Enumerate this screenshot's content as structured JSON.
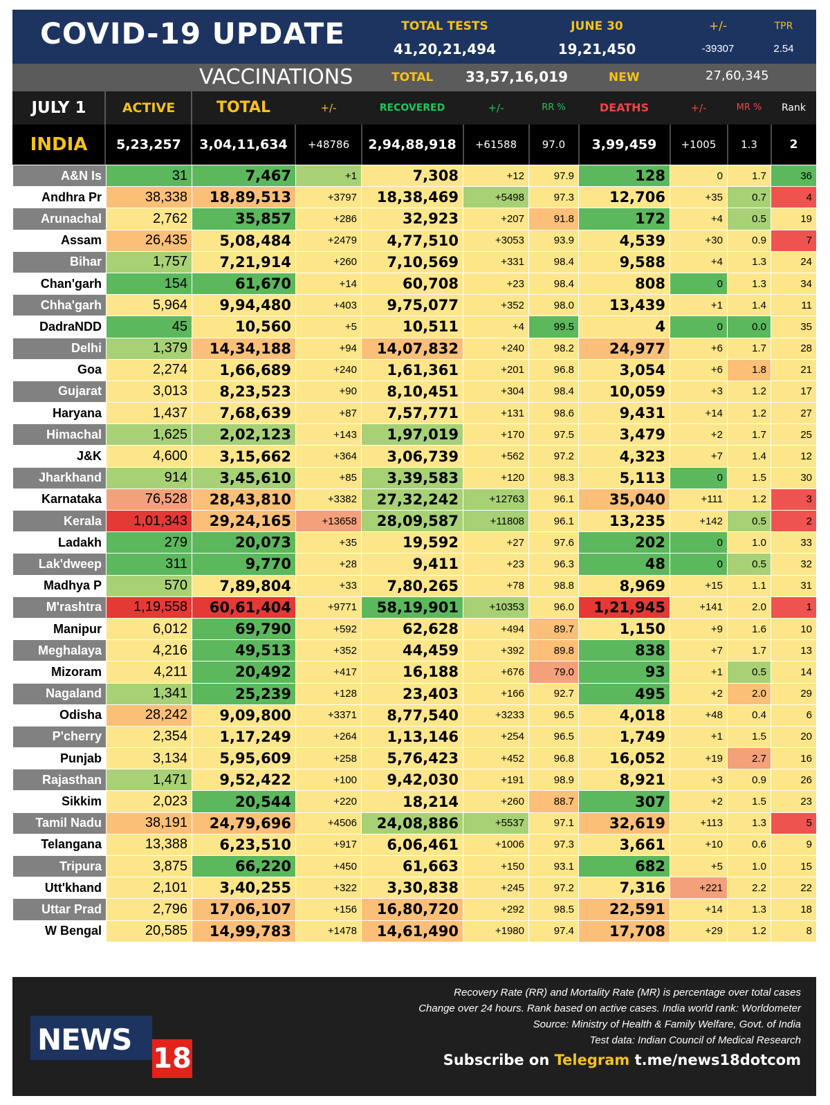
{
  "header": {
    "title": "COVID-19 UPDATE",
    "total_tests_label": "TOTAL TESTS",
    "total_tests_value": "41,20,21,494",
    "date_label": "JUNE 30",
    "date_value": "19,21,450",
    "change_label": "+/-",
    "change_value": "-39307",
    "tpr_label": "TPR",
    "tpr_value": "2.54"
  },
  "vaccinations": {
    "title": "VACCINATIONS",
    "total_label": "TOTAL",
    "total_value": "33,57,16,019",
    "new_label": "NEW",
    "new_value": "27,60,345"
  },
  "columns": {
    "date": "JULY 1",
    "active": "ACTIVE",
    "total": "TOTAL",
    "total_change": "+/-",
    "recovered": "RECOVERED",
    "recovered_change": "+/-",
    "rr": "RR %",
    "deaths": "DEATHS",
    "deaths_change": "+/-",
    "mr": "MR %",
    "rank": "Rank"
  },
  "india": {
    "name": "INDIA",
    "active": "5,23,257",
    "total": "3,04,11,634",
    "total_change": "+48786",
    "recovered": "2,94,88,918",
    "recovered_change": "+61588",
    "rr": "97.0",
    "deaths": "3,99,459",
    "deaths_change": "+1005",
    "mr": "1.3",
    "rank": "2"
  },
  "states": [
    [
      "A&N Is",
      "31",
      "7,467",
      "+1",
      "7,308",
      "+12",
      "97.9",
      "128",
      "0",
      "1.7",
      "36"
    ],
    [
      "Andhra Pr",
      "38,338",
      "18,89,513",
      "+3797",
      "18,38,469",
      "+5498",
      "97.3",
      "12,706",
      "+35",
      "0.7",
      "4"
    ],
    [
      "Arunachal",
      "2,762",
      "35,857",
      "+286",
      "32,923",
      "+207",
      "91.8",
      "172",
      "+4",
      "0.5",
      "19"
    ],
    [
      "Assam",
      "26,435",
      "5,08,484",
      "+2479",
      "4,77,510",
      "+3053",
      "93.9",
      "4,539",
      "+30",
      "0.9",
      "7"
    ],
    [
      "Bihar",
      "1,757",
      "7,21,914",
      "+260",
      "7,10,569",
      "+331",
      "98.4",
      "9,588",
      "+4",
      "1.3",
      "24"
    ],
    [
      "Chan'garh",
      "154",
      "61,670",
      "+14",
      "60,708",
      "+23",
      "98.4",
      "808",
      "0",
      "1.3",
      "34"
    ],
    [
      "Chha'garh",
      "5,964",
      "9,94,480",
      "+403",
      "9,75,077",
      "+352",
      "98.0",
      "13,439",
      "+1",
      "1.4",
      "11"
    ],
    [
      "DadraNDD",
      "45",
      "10,560",
      "+5",
      "10,511",
      "+4",
      "99.5",
      "4",
      "0",
      "0.0",
      "35"
    ],
    [
      "Delhi",
      "1,379",
      "14,34,188",
      "+94",
      "14,07,832",
      "+240",
      "98.2",
      "24,977",
      "+6",
      "1.7",
      "28"
    ],
    [
      "Goa",
      "2,274",
      "1,66,689",
      "+240",
      "1,61,361",
      "+201",
      "96.8",
      "3,054",
      "+6",
      "1.8",
      "21"
    ],
    [
      "Gujarat",
      "3,013",
      "8,23,523",
      "+90",
      "8,10,451",
      "+304",
      "98.4",
      "10,059",
      "+3",
      "1.2",
      "17"
    ],
    [
      "Haryana",
      "1,437",
      "7,68,639",
      "+87",
      "7,57,771",
      "+131",
      "98.6",
      "9,431",
      "+14",
      "1.2",
      "27"
    ],
    [
      "Himachal",
      "1,625",
      "2,02,123",
      "+143",
      "1,97,019",
      "+170",
      "97.5",
      "3,479",
      "+2",
      "1.7",
      "25"
    ],
    [
      "J&K",
      "4,600",
      "3,15,662",
      "+364",
      "3,06,739",
      "+562",
      "97.2",
      "4,323",
      "+7",
      "1.4",
      "12"
    ],
    [
      "Jharkhand",
      "914",
      "3,45,610",
      "+85",
      "3,39,583",
      "+120",
      "98.3",
      "5,113",
      "0",
      "1.5",
      "30"
    ],
    [
      "Karnataka",
      "76,528",
      "28,43,810",
      "+3382",
      "27,32,242",
      "+12763",
      "96.1",
      "35,040",
      "+111",
      "1.2",
      "3"
    ],
    [
      "Kerala",
      "1,01,343",
      "29,24,165",
      "+13658",
      "28,09,587",
      "+11808",
      "96.1",
      "13,235",
      "+142",
      "0.5",
      "2"
    ],
    [
      "Ladakh",
      "279",
      "20,073",
      "+35",
      "19,592",
      "+27",
      "97.6",
      "202",
      "0",
      "1.0",
      "33"
    ],
    [
      "Lak'dweep",
      "311",
      "9,770",
      "+28",
      "9,411",
      "+23",
      "96.3",
      "48",
      "0",
      "0.5",
      "32"
    ],
    [
      "Madhya P",
      "570",
      "7,89,804",
      "+33",
      "7,80,265",
      "+78",
      "98.8",
      "8,969",
      "+15",
      "1.1",
      "31"
    ],
    [
      "M'rashtra",
      "1,19,558",
      "60,61,404",
      "+9771",
      "58,19,901",
      "+10353",
      "96.0",
      "1,21,945",
      "+141",
      "2.0",
      "1"
    ],
    [
      "Manipur",
      "6,012",
      "69,790",
      "+592",
      "62,628",
      "+494",
      "89.7",
      "1,150",
      "+9",
      "1.6",
      "10"
    ],
    [
      "Meghalaya",
      "4,216",
      "49,513",
      "+352",
      "44,459",
      "+392",
      "89.8",
      "838",
      "+7",
      "1.7",
      "13"
    ],
    [
      "Mizoram",
      "4,211",
      "20,492",
      "+417",
      "16,188",
      "+676",
      "79.0",
      "93",
      "+1",
      "0.5",
      "14"
    ],
    [
      "Nagaland",
      "1,341",
      "25,239",
      "+128",
      "23,403",
      "+166",
      "92.7",
      "495",
      "+2",
      "2.0",
      "29"
    ],
    [
      "Odisha",
      "28,242",
      "9,09,800",
      "+3371",
      "8,77,540",
      "+3233",
      "96.5",
      "4,018",
      "+48",
      "0.4",
      "6"
    ],
    [
      "P'cherry",
      "2,354",
      "1,17,249",
      "+264",
      "1,13,146",
      "+254",
      "96.5",
      "1,749",
      "+1",
      "1.5",
      "20"
    ],
    [
      "Punjab",
      "3,134",
      "5,95,609",
      "+258",
      "5,76,423",
      "+452",
      "96.8",
      "16,052",
      "+19",
      "2.7",
      "16"
    ],
    [
      "Rajasthan",
      "1,471",
      "9,52,422",
      "+100",
      "9,42,030",
      "+191",
      "98.9",
      "8,921",
      "+3",
      "0.9",
      "26"
    ],
    [
      "Sikkim",
      "2,023",
      "20,544",
      "+220",
      "18,214",
      "+260",
      "88.7",
      "307",
      "+2",
      "1.5",
      "23"
    ],
    [
      "Tamil Nadu",
      "38,191",
      "24,79,696",
      "+4506",
      "24,08,886",
      "+5537",
      "97.1",
      "32,619",
      "+113",
      "1.3",
      "5"
    ],
    [
      "Telangana",
      "13,388",
      "6,23,510",
      "+917",
      "6,06,461",
      "+1006",
      "97.3",
      "3,661",
      "+10",
      "0.6",
      "9"
    ],
    [
      "Tripura",
      "3,875",
      "66,220",
      "+450",
      "61,663",
      "+150",
      "93.1",
      "682",
      "+5",
      "1.0",
      "15"
    ],
    [
      "Utt'khand",
      "2,101",
      "3,40,255",
      "+322",
      "3,30,838",
      "+245",
      "97.2",
      "7,316",
      "+221",
      "2.2",
      "22"
    ],
    [
      "Uttar Prad",
      "2,796",
      "17,06,107",
      "+156",
      "16,80,720",
      "+292",
      "98.5",
      "22,591",
      "+14",
      "1.3",
      "18"
    ],
    [
      "W Bengal",
      "20,585",
      "14,99,783",
      "+1478",
      "14,61,490",
      "+1980",
      "97.4",
      "17,708",
      "+29",
      "1.2",
      "8"
    ]
  ],
  "colors": {
    "green": "#5cb85c",
    "light_green": "#a8d175",
    "yellow": "#fde68a",
    "orange": "#fbbf77",
    "salmon": "#f4a07a",
    "red": "#ef5350",
    "deep_red": "#e53935"
  },
  "cell_colors": [
    [
      "g",
      "g",
      "l",
      "y",
      "y",
      "y",
      "g",
      "y",
      "y",
      "g"
    ],
    [
      "o",
      "o",
      "y",
      "y",
      "l",
      "y",
      "y",
      "y",
      "l",
      "r"
    ],
    [
      "y",
      "g",
      "y",
      "y",
      "y",
      "o",
      "g",
      "y",
      "l",
      "y"
    ],
    [
      "o",
      "y",
      "y",
      "y",
      "y",
      "y",
      "y",
      "y",
      "y",
      "r"
    ],
    [
      "l",
      "y",
      "y",
      "y",
      "y",
      "y",
      "y",
      "y",
      "y",
      "y"
    ],
    [
      "g",
      "g",
      "y",
      "y",
      "y",
      "y",
      "y",
      "g",
      "y",
      "y"
    ],
    [
      "y",
      "y",
      "y",
      "y",
      "y",
      "y",
      "y",
      "y",
      "y",
      "y"
    ],
    [
      "g",
      "y",
      "y",
      "y",
      "y",
      "g",
      "y",
      "g",
      "g",
      "y"
    ],
    [
      "l",
      "o",
      "y",
      "o",
      "y",
      "y",
      "o",
      "y",
      "y",
      "y"
    ],
    [
      "y",
      "y",
      "y",
      "y",
      "y",
      "y",
      "y",
      "y",
      "o",
      "y"
    ],
    [
      "y",
      "y",
      "y",
      "y",
      "y",
      "y",
      "y",
      "y",
      "y",
      "y"
    ],
    [
      "y",
      "y",
      "y",
      "y",
      "y",
      "y",
      "y",
      "y",
      "y",
      "y"
    ],
    [
      "l",
      "l",
      "y",
      "l",
      "y",
      "y",
      "y",
      "y",
      "y",
      "y"
    ],
    [
      "y",
      "y",
      "y",
      "y",
      "y",
      "y",
      "y",
      "y",
      "y",
      "y"
    ],
    [
      "l",
      "l",
      "y",
      "l",
      "y",
      "y",
      "y",
      "g",
      "y",
      "y"
    ],
    [
      "s",
      "o",
      "y",
      "l",
      "l",
      "y",
      "o",
      "y",
      "y",
      "r"
    ],
    [
      "d",
      "o",
      "s",
      "l",
      "l",
      "y",
      "y",
      "y",
      "l",
      "r"
    ],
    [
      "g",
      "g",
      "y",
      "y",
      "y",
      "y",
      "g",
      "g",
      "y",
      "y"
    ],
    [
      "g",
      "g",
      "y",
      "y",
      "y",
      "y",
      "g",
      "g",
      "l",
      "y"
    ],
    [
      "l",
      "y",
      "y",
      "y",
      "y",
      "y",
      "y",
      "y",
      "y",
      "y"
    ],
    [
      "d",
      "d",
      "y",
      "g",
      "l",
      "y",
      "d",
      "y",
      "y",
      "r"
    ],
    [
      "y",
      "g",
      "y",
      "y",
      "y",
      "o",
      "y",
      "y",
      "y",
      "y"
    ],
    [
      "y",
      "g",
      "y",
      "y",
      "y",
      "o",
      "g",
      "y",
      "y",
      "y"
    ],
    [
      "y",
      "g",
      "y",
      "y",
      "y",
      "s",
      "g",
      "y",
      "l",
      "y"
    ],
    [
      "l",
      "g",
      "y",
      "y",
      "y",
      "y",
      "g",
      "y",
      "o",
      "y"
    ],
    [
      "o",
      "y",
      "y",
      "y",
      "y",
      "y",
      "y",
      "y",
      "y",
      "y"
    ],
    [
      "y",
      "y",
      "y",
      "y",
      "y",
      "y",
      "y",
      "y",
      "y",
      "y"
    ],
    [
      "y",
      "y",
      "y",
      "y",
      "y",
      "y",
      "y",
      "y",
      "s",
      "y"
    ],
    [
      "l",
      "y",
      "y",
      "y",
      "y",
      "y",
      "y",
      "y",
      "y",
      "y"
    ],
    [
      "y",
      "g",
      "y",
      "y",
      "y",
      "o",
      "g",
      "y",
      "y",
      "y"
    ],
    [
      "o",
      "o",
      "y",
      "l",
      "l",
      "y",
      "o",
      "y",
      "y",
      "r"
    ],
    [
      "y",
      "y",
      "y",
      "y",
      "y",
      "y",
      "y",
      "y",
      "y",
      "y"
    ],
    [
      "y",
      "g",
      "y",
      "y",
      "y",
      "y",
      "g",
      "y",
      "y",
      "y"
    ],
    [
      "y",
      "y",
      "y",
      "y",
      "y",
      "y",
      "y",
      "s",
      "y",
      "y"
    ],
    [
      "y",
      "o",
      "y",
      "o",
      "y",
      "y",
      "o",
      "y",
      "y",
      "y"
    ],
    [
      "y",
      "o",
      "y",
      "o",
      "y",
      "y",
      "o",
      "y",
      "y",
      "y"
    ]
  ],
  "footer": {
    "logo_text": "NEWS",
    "logo_number": "18",
    "note1": "Recovery Rate (RR) and Mortality Rate (MR) is percentage over total cases",
    "note2": "Change over 24 hours. Rank based on active cases. India world rank: Worldometer",
    "note3": "Source: Ministry of Health & Family Welfare, Govt. of India",
    "note4": "Test data: Indian Council of Medical Research",
    "subscribe_prefix": "Subscribe on",
    "subscribe_platform": "Telegram",
    "subscribe_link": "t.me/news18dotcom"
  }
}
